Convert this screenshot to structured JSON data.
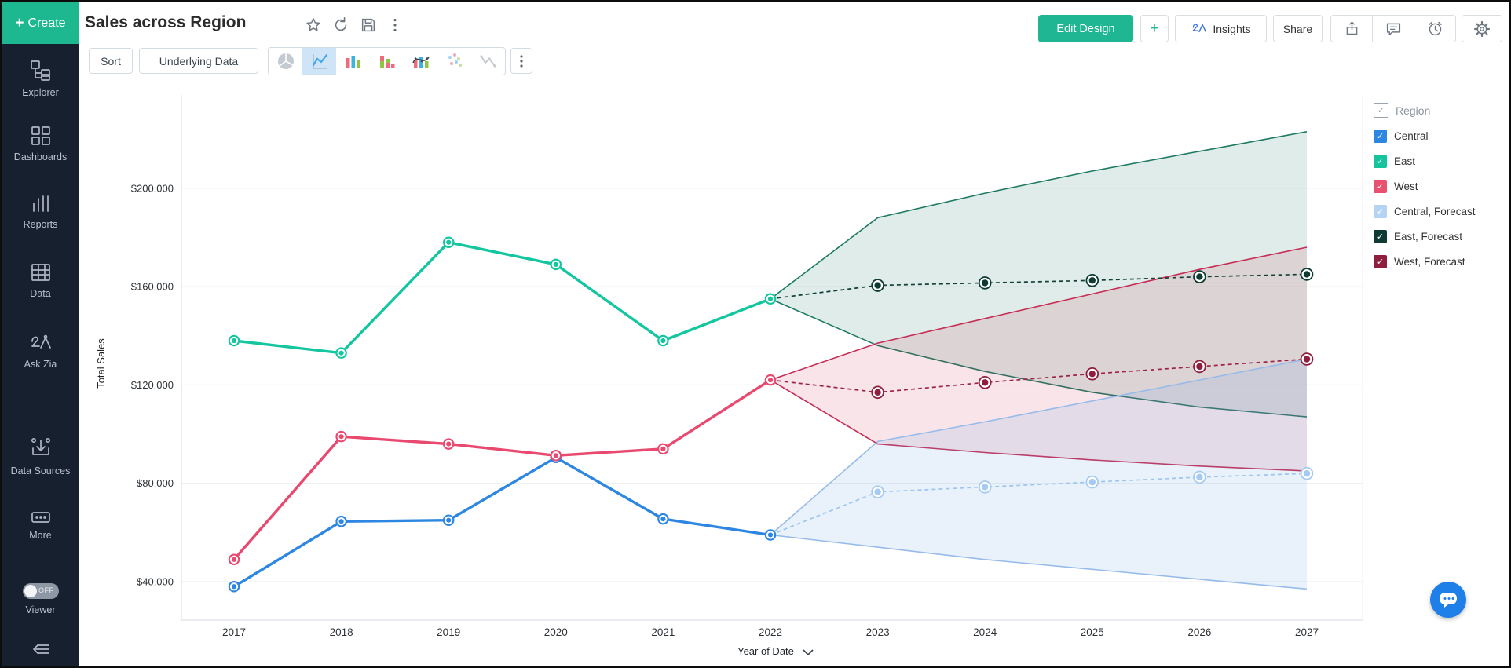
{
  "sidebar": {
    "create_label": "Create",
    "items": [
      {
        "icon": "explorer-icon",
        "label": "Explorer"
      },
      {
        "icon": "dashboards-icon",
        "label": "Dashboards"
      },
      {
        "icon": "reports-icon",
        "label": "Reports"
      },
      {
        "icon": "data-icon",
        "label": "Data"
      },
      {
        "icon": "ask-zia-icon",
        "label": "Ask Zia"
      },
      {
        "icon": "data-sources-icon",
        "label": "Data Sources"
      },
      {
        "icon": "more-icon",
        "label": "More"
      }
    ],
    "viewer": {
      "label": "Viewer",
      "state": "OFF"
    },
    "collapse_icon": "collapse-arrow-icon"
  },
  "header": {
    "title": "Sales across Region",
    "title_icons": [
      "star-icon",
      "refresh-icon",
      "save-icon",
      "kebab-icon"
    ],
    "buttons": {
      "edit_design": "Edit Design",
      "add": "+",
      "insights": "Insights",
      "share": "Share"
    },
    "right_icons": [
      "export-icon",
      "comment-icon",
      "history-icon",
      "settings-icon"
    ]
  },
  "toolbar": {
    "sort_label": "Sort",
    "underlying_label": "Underlying Data",
    "chart_icons": [
      "pie-chart-icon",
      "line-chart-icon",
      "bar-chart-icon",
      "stacked-bar-icon",
      "bar-line-icon",
      "scatter-icon",
      "stock-chart-icon"
    ],
    "selected_chart": "line-chart-icon"
  },
  "legend": {
    "header": {
      "label": "Region"
    },
    "items": [
      {
        "label": "Central",
        "color": "#2d87e2"
      },
      {
        "label": "East",
        "color": "#15c49c"
      },
      {
        "label": "West",
        "color": "#e8516f"
      },
      {
        "label": "Central, Forecast",
        "color": "#b5d3f2"
      },
      {
        "label": "East, Forecast",
        "color": "#0e3c34"
      },
      {
        "label": "West, Forecast",
        "color": "#8e1d3e"
      }
    ]
  },
  "chart_data": {
    "type": "line",
    "title": "Sales across Region",
    "xlabel": "Year of Date",
    "ylabel": "Total Sales",
    "grid": true,
    "legend_position": "right",
    "ylim": [
      20000,
      235000
    ],
    "xticks": [
      "2017",
      "2018",
      "2019",
      "2020",
      "2021",
      "2022",
      "2023",
      "2024",
      "2025",
      "2026",
      "2027"
    ],
    "yticks": [
      {
        "value": 40000,
        "label": "$40,000"
      },
      {
        "value": 80000,
        "label": "$80,000"
      },
      {
        "value": 120000,
        "label": "$120,000"
      },
      {
        "value": 160000,
        "label": "$160,000"
      },
      {
        "value": 200000,
        "label": "$200,000"
      }
    ],
    "series": [
      {
        "name": "Central",
        "color": "#2d87e2",
        "x": [
          2017,
          2018,
          2019,
          2020,
          2021,
          2022
        ],
        "values": [
          38000,
          64500,
          65000,
          90500,
          65500,
          59000
        ]
      },
      {
        "name": "East",
        "color": "#13c6a0",
        "x": [
          2017,
          2018,
          2019,
          2020,
          2021,
          2022
        ],
        "values": [
          138000,
          133000,
          178000,
          169000,
          138000,
          155000
        ]
      },
      {
        "name": "West",
        "color": "#e9486f",
        "x": [
          2017,
          2018,
          2019,
          2020,
          2021,
          2022
        ],
        "values": [
          49000,
          99000,
          96000,
          91300,
          94000,
          122000
        ]
      }
    ],
    "forecast": [
      {
        "name": "East, Forecast",
        "base": "East",
        "color": "#0d3b33",
        "line_color": "#123f37",
        "band_stroke": "#1e7a64",
        "band_fill": "rgba(30,122,100,0.14)",
        "x": [
          2023,
          2024,
          2025,
          2026,
          2027
        ],
        "values": [
          160500,
          161500,
          162500,
          164000,
          165000
        ],
        "band_upper": [
          188000,
          198000,
          207000,
          215000,
          223000
        ],
        "band_lower": [
          136000,
          125500,
          117000,
          111000,
          107000
        ]
      },
      {
        "name": "West, Forecast",
        "base": "West",
        "color": "#8e1d3e",
        "line_color": "#9c2347",
        "band_stroke": "#c72c55",
        "band_fill": "rgba(199,44,85,0.13)",
        "x": [
          2023,
          2024,
          2025,
          2026,
          2027
        ],
        "values": [
          117000,
          121000,
          124500,
          127500,
          130500
        ],
        "band_upper": [
          137000,
          147000,
          157000,
          167000,
          176000
        ],
        "band_lower": [
          96000,
          92500,
          89500,
          87000,
          85000
        ]
      },
      {
        "name": "Central, Forecast",
        "base": "Central",
        "color": "#a5cbf2",
        "line_color": "#9cc5ef",
        "band_stroke": "#96bbea",
        "band_fill": "rgba(110,165,228,0.15)",
        "x": [
          2023,
          2024,
          2025,
          2026,
          2027
        ],
        "values": [
          76500,
          78500,
          80500,
          82500,
          84000
        ],
        "band_upper": [
          97000,
          105000,
          113500,
          122000,
          130500
        ],
        "band_lower": [
          54000,
          49000,
          45000,
          41000,
          37000
        ]
      }
    ]
  }
}
